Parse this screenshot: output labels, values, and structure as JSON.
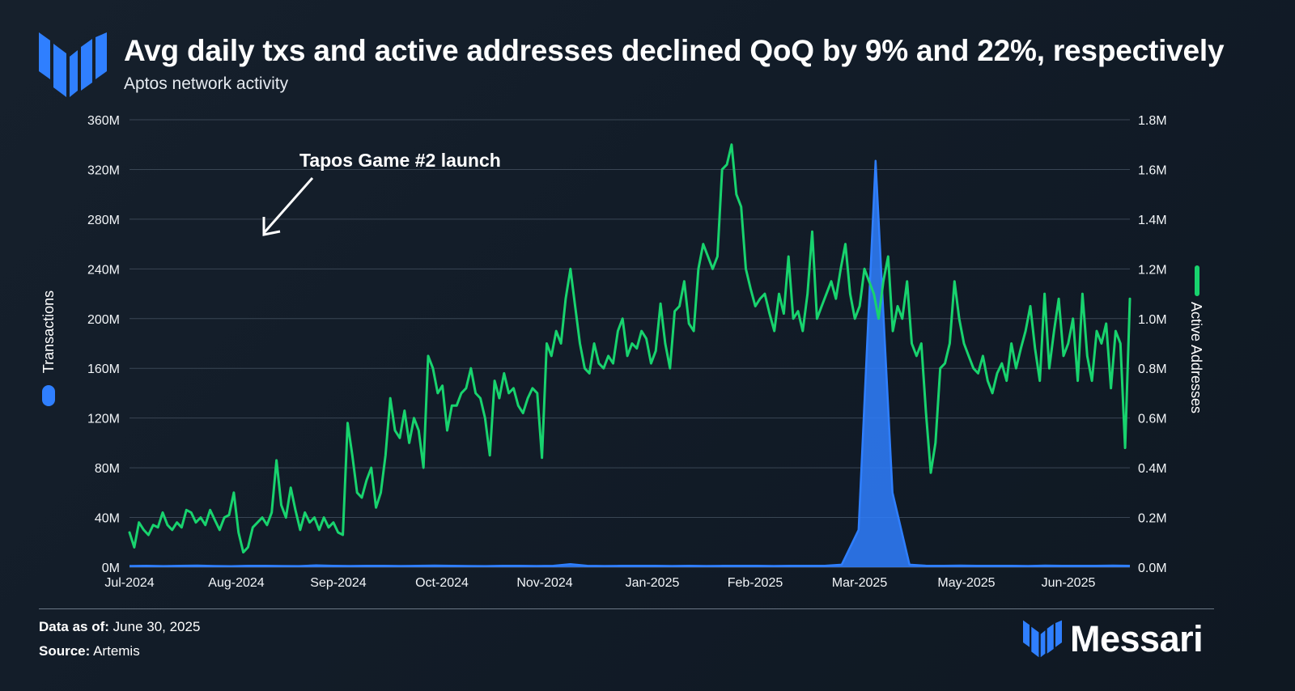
{
  "header": {
    "title": "Avg daily txs and active addresses declined QoQ by 9% and 22%, respectively",
    "subtitle": "Aptos network activity"
  },
  "footer": {
    "data_as_of_label": "Data as of:",
    "data_as_of_value": "June 30, 2025",
    "source_label": "Source:",
    "source_value": "Artemis",
    "brand": "Messari"
  },
  "colors": {
    "transactions": "#2f7fff",
    "active_addresses": "#18d36e",
    "grid": "#3a4654",
    "brand": "#2f7fff"
  },
  "chart_data": {
    "type": "line",
    "title": "Avg daily txs and active addresses declined QoQ by 9% and 22%, respectively",
    "subtitle": "Aptos network activity",
    "x_tick_labels": [
      "Jul-2024",
      "Aug-2024",
      "Sep-2024",
      "Oct-2024",
      "Nov-2024",
      "Jan-2025",
      "Feb-2025",
      "Mar-2025",
      "May-2025",
      "Jun-2025"
    ],
    "x_start": "2024-07-01",
    "x_end": "2025-06-30",
    "y_left": {
      "label": "Transactions",
      "ticks": [
        "0M",
        "40M",
        "80M",
        "120M",
        "160M",
        "200M",
        "240M",
        "280M",
        "320M",
        "360M"
      ],
      "ylim": [
        0,
        360
      ]
    },
    "y_right": {
      "label": "Active Addresses",
      "ticks": [
        "0.0M",
        "0.2M",
        "0.4M",
        "0.6M",
        "0.8M",
        "1.0M",
        "1.2M",
        "1.4M",
        "1.6M",
        "1.8M"
      ],
      "ylim": [
        0,
        1.8
      ]
    },
    "grid": true,
    "annotation": {
      "text": "Tapos Game #2 launch",
      "x_index": 44,
      "series": "Transactions"
    },
    "series": [
      {
        "name": "Transactions",
        "axis": "left",
        "style": "area",
        "color": "#2f7fff",
        "values": [
          1.0,
          1.2,
          0.9,
          1.1,
          1.3,
          1.0,
          0.8,
          1.2,
          1.1,
          1.0,
          0.9,
          1.4,
          1.2,
          1.0,
          1.1,
          1.2,
          1.0,
          1.1,
          1.3,
          1.2,
          1.0,
          0.9,
          1.1,
          1.2,
          1.0,
          1.1,
          2.5,
          1.2,
          1.0,
          1.1,
          1.2,
          1.1,
          1.0,
          1.2,
          1.0,
          1.1,
          1.2,
          1.1,
          1.0,
          1.2,
          1.1,
          1.2,
          2.0,
          30.0,
          327.0,
          60.0,
          2.0,
          1.2,
          1.1,
          1.3,
          1.2,
          1.1,
          1.2,
          1.0,
          1.3,
          1.2,
          1.1,
          1.2,
          1.3,
          1.2
        ]
      },
      {
        "name": "Active Addresses",
        "axis": "right",
        "style": "line",
        "color": "#18d36e",
        "values": [
          0.14,
          0.08,
          0.18,
          0.15,
          0.13,
          0.17,
          0.16,
          0.22,
          0.17,
          0.15,
          0.18,
          0.16,
          0.23,
          0.22,
          0.18,
          0.2,
          0.17,
          0.23,
          0.19,
          0.15,
          0.2,
          0.21,
          0.3,
          0.14,
          0.06,
          0.08,
          0.16,
          0.18,
          0.2,
          0.17,
          0.22,
          0.43,
          0.25,
          0.2,
          0.32,
          0.23,
          0.15,
          0.22,
          0.18,
          0.2,
          0.15,
          0.2,
          0.16,
          0.18,
          0.14,
          0.13,
          0.58,
          0.45,
          0.3,
          0.28,
          0.35,
          0.4,
          0.24,
          0.3,
          0.45,
          0.68,
          0.55,
          0.52,
          0.63,
          0.5,
          0.6,
          0.55,
          0.4,
          0.85,
          0.8,
          0.7,
          0.73,
          0.55,
          0.65,
          0.65,
          0.7,
          0.72,
          0.8,
          0.7,
          0.68,
          0.6,
          0.45,
          0.75,
          0.68,
          0.78,
          0.7,
          0.72,
          0.65,
          0.62,
          0.68,
          0.72,
          0.7,
          0.44,
          0.9,
          0.85,
          0.95,
          0.9,
          1.08,
          1.2,
          1.05,
          0.9,
          0.8,
          0.78,
          0.9,
          0.82,
          0.8,
          0.85,
          0.82,
          0.95,
          1.0,
          0.85,
          0.9,
          0.88,
          0.95,
          0.92,
          0.82,
          0.87,
          1.06,
          0.9,
          0.8,
          1.03,
          1.05,
          1.15,
          0.98,
          0.95,
          1.2,
          1.3,
          1.25,
          1.2,
          1.25,
          1.6,
          1.62,
          1.7,
          1.5,
          1.45,
          1.2,
          1.12,
          1.05,
          1.08,
          1.1,
          1.02,
          0.95,
          1.1,
          1.02,
          1.25,
          1.0,
          1.03,
          0.95,
          1.1,
          1.35,
          1.0,
          1.05,
          1.1,
          1.15,
          1.08,
          1.2,
          1.3,
          1.1,
          1.0,
          1.05,
          1.2,
          1.15,
          1.1,
          1.0,
          1.15,
          1.25,
          0.95,
          1.05,
          1.0,
          1.15,
          0.9,
          0.85,
          0.9,
          0.62,
          0.38,
          0.5,
          0.8,
          0.82,
          0.9,
          1.15,
          1.0,
          0.9,
          0.85,
          0.8,
          0.78,
          0.85,
          0.75,
          0.7,
          0.78,
          0.82,
          0.75,
          0.9,
          0.8,
          0.88,
          0.95,
          1.05,
          0.88,
          0.75,
          1.1,
          0.8,
          0.95,
          1.08,
          0.85,
          0.9,
          1.0,
          0.75,
          1.1,
          0.85,
          0.75,
          0.95,
          0.9,
          0.98,
          0.72,
          0.95,
          0.9,
          0.48,
          1.08
        ]
      }
    ]
  }
}
